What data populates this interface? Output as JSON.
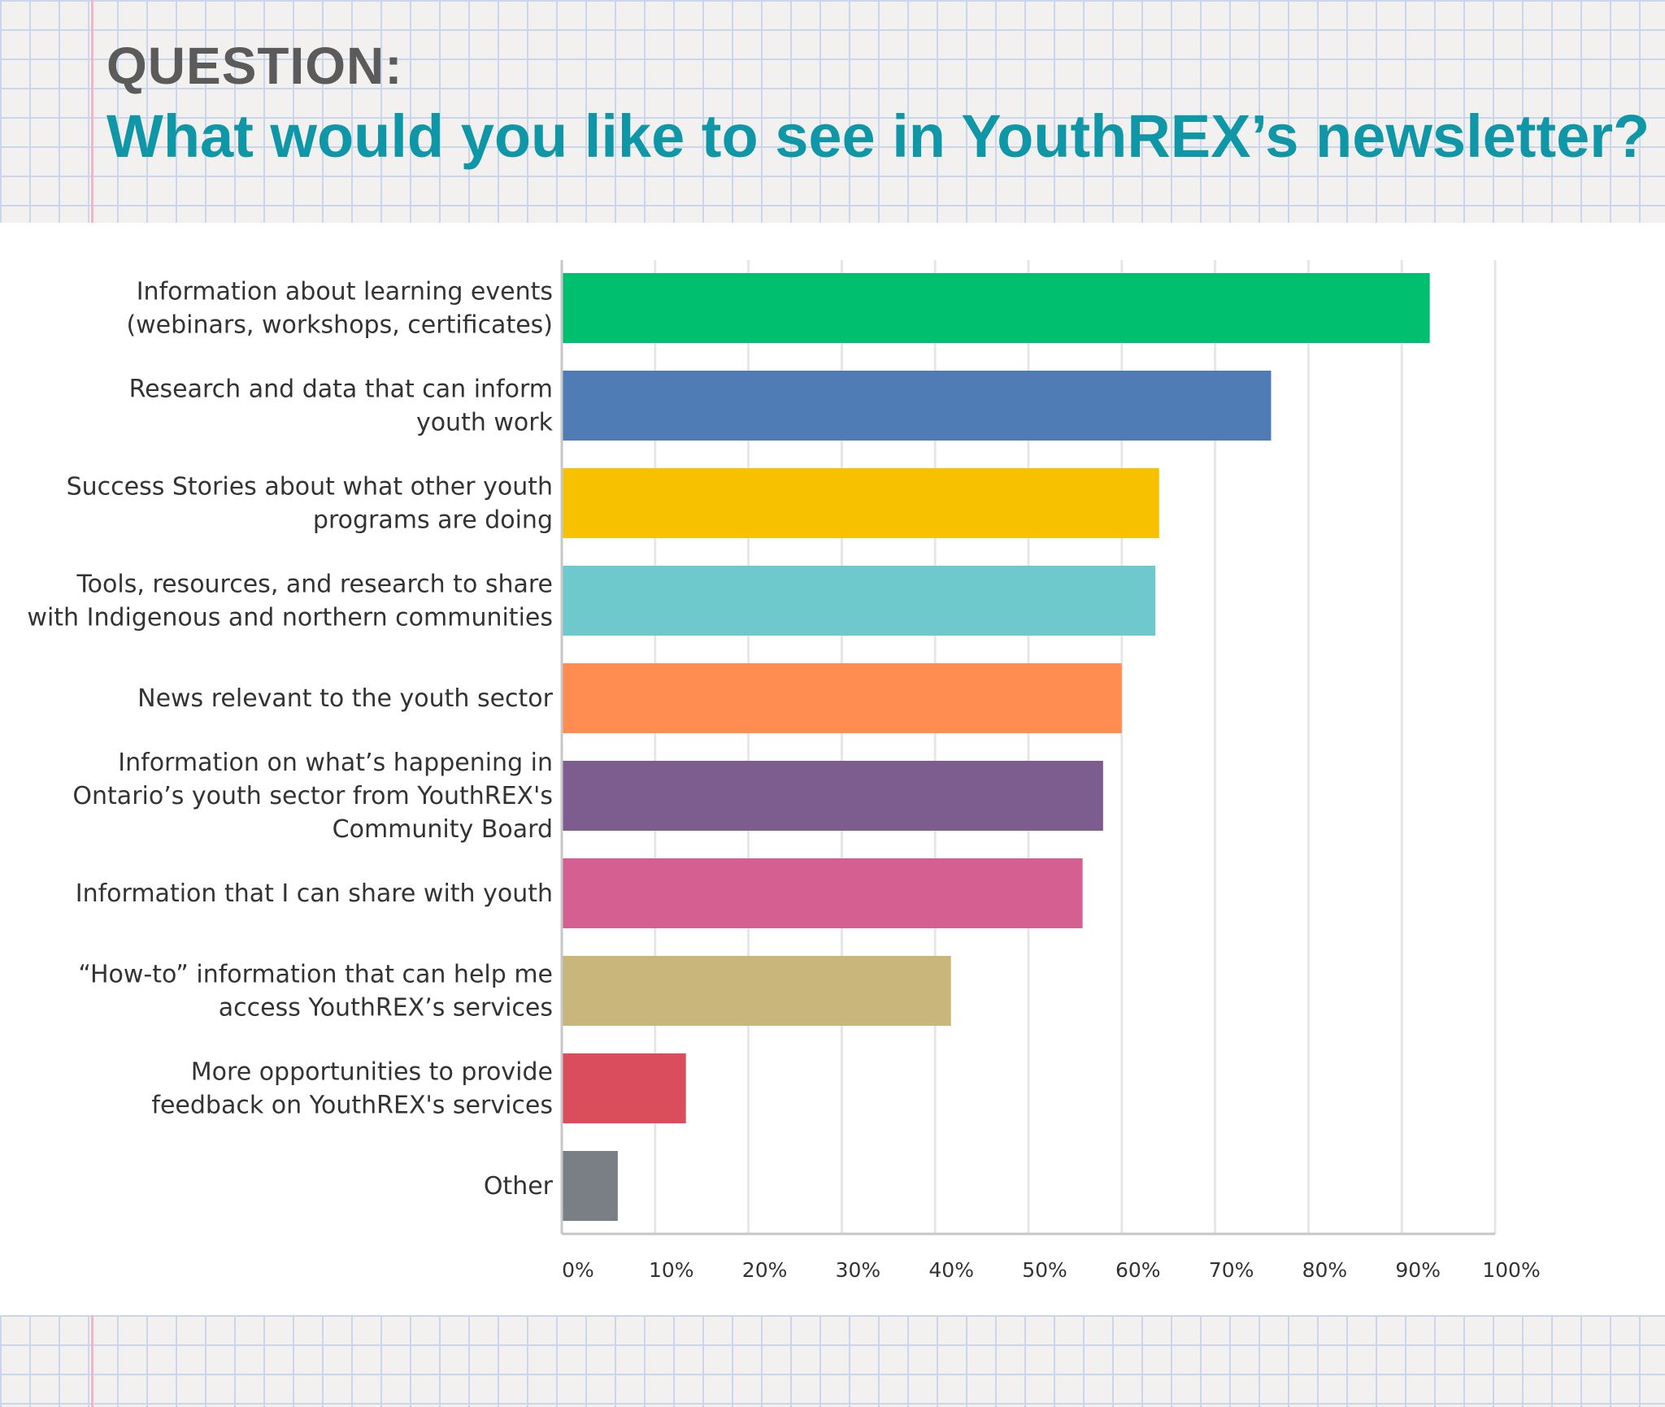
{
  "header": {
    "kicker": "QUESTION:",
    "title": "What would you like to see in YouthREX’s newsletter?"
  },
  "chart_data": {
    "type": "bar",
    "orientation": "horizontal",
    "categories": [
      [
        "Information about learning events",
        "(webinars, workshops, certificates)"
      ],
      [
        "Research and data that can inform",
        "youth work"
      ],
      [
        "Success Stories about what other youth",
        "programs are doing"
      ],
      [
        "Tools, resources, and research to share",
        "with Indigenous and northern communities"
      ],
      [
        "News relevant to the youth sector"
      ],
      [
        "Information on what’s happening in",
        "Ontario’s youth sector from YouthREX's",
        "Community Board"
      ],
      [
        "Information that I can share with youth"
      ],
      [
        "“How-to” information that can help me",
        "access YouthREX’s services"
      ],
      [
        "More opportunities to provide",
        "feedback on YouthREX's services"
      ],
      [
        "Other"
      ]
    ],
    "values": [
      93,
      76,
      64,
      63.6,
      60,
      58,
      55.8,
      41.7,
      13.3,
      6
    ],
    "colors": [
      "#00c06f",
      "#507cb6",
      "#f7c100",
      "#6ec9cd",
      "#ff8c50",
      "#7d5d90",
      "#d45f90",
      "#c8b67a",
      "#da4d5d",
      "#7a7f86"
    ],
    "xlim": [
      0,
      100
    ],
    "ticks": [
      "0%",
      "10%",
      "20%",
      "30%",
      "40%",
      "50%",
      "60%",
      "70%",
      "80%",
      "90%",
      "100%"
    ],
    "grid": true
  }
}
